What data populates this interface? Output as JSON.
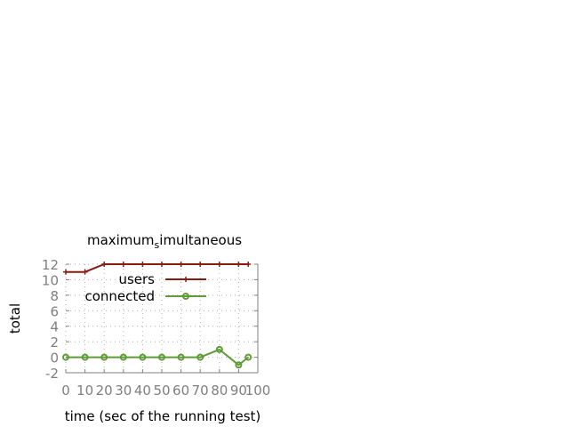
{
  "chart_data": {
    "type": "line",
    "title": "maximum_simultaneous",
    "title_main": "maximum",
    "title_sub": "s",
    "title_rest": "imultaneous",
    "xlabel": "time (sec of the running test)",
    "ylabel": "total",
    "xlim": [
      0,
      100
    ],
    "ylim": [
      -2,
      12
    ],
    "xticks": [
      "0",
      "10",
      "20",
      "30",
      "40",
      "50",
      "60",
      "70",
      "80",
      "90",
      "100"
    ],
    "yticks": [
      "-2",
      "0",
      "2",
      "4",
      "6",
      "8",
      "10",
      "12"
    ],
    "grid": true,
    "legend_position": "top-right",
    "series": [
      {
        "name": "users",
        "color": "#8b1a0e",
        "marker": "plus",
        "x": [
          0,
          10,
          20,
          30,
          40,
          50,
          60,
          70,
          80,
          90,
          95
        ],
        "y": [
          11,
          11,
          12,
          12,
          12,
          12,
          12,
          12,
          12,
          12,
          12
        ]
      },
      {
        "name": "connected",
        "color": "#5e9c36",
        "marker": "circle",
        "x": [
          0,
          10,
          20,
          30,
          40,
          50,
          60,
          70,
          80,
          90,
          95
        ],
        "y": [
          0,
          0,
          0,
          0,
          0,
          0,
          0,
          0,
          1,
          -1,
          0
        ]
      }
    ]
  }
}
